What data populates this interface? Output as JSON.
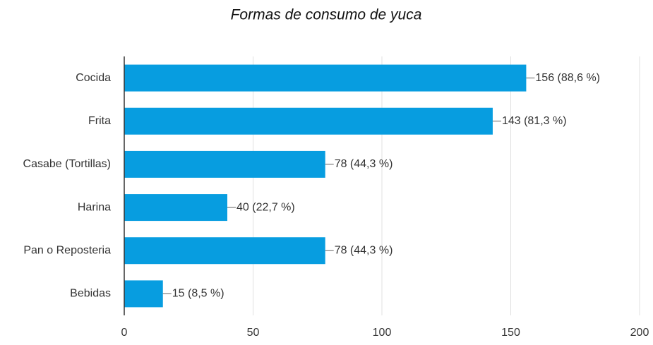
{
  "chart_data": {
    "type": "bar",
    "orientation": "horizontal",
    "title": "Formas de consumo de yuca",
    "categories": [
      "Cocida",
      "Frita",
      "Casabe (Tortillas)",
      "Harina",
      "Pan o Reposteria",
      "Bebidas"
    ],
    "values": [
      156,
      143,
      78,
      40,
      78,
      15
    ],
    "value_labels": [
      "156 (88,6 %)",
      "143 (81,3 %)",
      "78 (44,3 %)",
      "40 (22,7 %)",
      "78 (44,3 %)",
      "15 (8,5 %)"
    ],
    "color": "#079de0",
    "xlim": [
      0,
      200
    ],
    "xticks": [
      0,
      50,
      100,
      150,
      200
    ],
    "grid": true
  }
}
